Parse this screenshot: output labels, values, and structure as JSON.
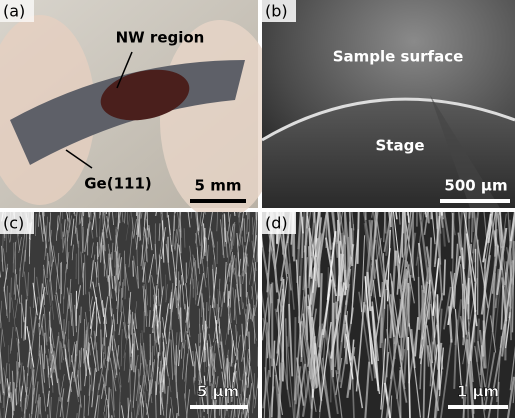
{
  "panels": [
    {
      "label": "(a)",
      "annotations": [
        "NW region",
        "Ge(111)"
      ],
      "scale_bar": "5 mm"
    },
    {
      "label": "(b)",
      "annotations": [
        "Sample surface",
        "Stage"
      ],
      "scale_bar": "500 µm"
    },
    {
      "label": "(c)",
      "annotations": [],
      "scale_bar": "5 µm"
    },
    {
      "label": "(d)",
      "annotations": [],
      "scale_bar": "1 µm"
    }
  ]
}
